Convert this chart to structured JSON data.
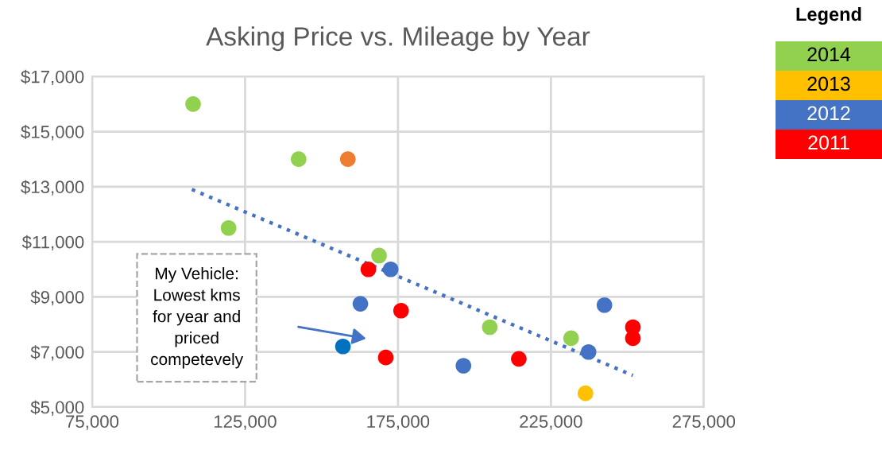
{
  "chart_data": {
    "type": "scatter",
    "title": "Asking Price vs. Mileage by Year",
    "legend_title": "Legend",
    "series": [
      {
        "name": "2014",
        "color": "#92d050",
        "x": [
          108000,
          142500,
          119600,
          168800,
          205000,
          231600
        ],
        "values": [
          16000,
          14000,
          11500,
          10500,
          7900,
          7500
        ]
      },
      {
        "name": "2013",
        "color": "#ffc000",
        "x": [
          236300
        ],
        "values": [
          5500
        ]
      },
      {
        "name": "2012",
        "color": "#4472c4",
        "x": [
          172600,
          162700,
          196400,
          237300,
          242500
        ],
        "values": [
          10000,
          8750,
          6500,
          7000,
          8700
        ]
      },
      {
        "name": "2011",
        "color": "#ff0000",
        "x": [
          165300,
          176000,
          171000,
          214500,
          251800,
          251800
        ],
        "values": [
          10000,
          8500,
          6800,
          6750,
          7900,
          7500
        ]
      },
      {
        "color": "#ed7d31",
        "x": [
          158600
        ],
        "values": [
          14000
        ]
      },
      {
        "color": "#0070c0",
        "x": [
          157000
        ],
        "values": [
          7200
        ]
      },
      {
        "type": "line",
        "color": "#4472c4",
        "line_style": "dotted",
        "marker": "none",
        "x": [
          107600,
          251800
        ],
        "values": [
          12900,
          6150
        ]
      }
    ],
    "annotations": [
      "My Vehicle:\nLowest kms\nfor year and\npriced\ncompetevely"
    ],
    "xlim": [
      75000,
      275000
    ],
    "ylim": [
      5000,
      17000
    ],
    "xticks": [
      {
        "value": 75000,
        "label": "75,000"
      },
      {
        "value": 125000,
        "label": "125,000"
      },
      {
        "value": 175000,
        "label": "175,000"
      },
      {
        "value": 225000,
        "label": "225,000"
      },
      {
        "value": 275000,
        "label": "275,000"
      }
    ],
    "yticks": [
      {
        "value": 5000,
        "label": "$5,000"
      },
      {
        "value": 7000,
        "label": "$7,000"
      },
      {
        "value": 9000,
        "label": "$9,000"
      },
      {
        "value": 11000,
        "label": "$11,000"
      },
      {
        "value": 13000,
        "label": "$13,000"
      },
      {
        "value": 15000,
        "label": "$15,000"
      },
      {
        "value": 17000,
        "label": "$17,000"
      }
    ],
    "grid": true,
    "marker": "circle",
    "legend": "right"
  }
}
